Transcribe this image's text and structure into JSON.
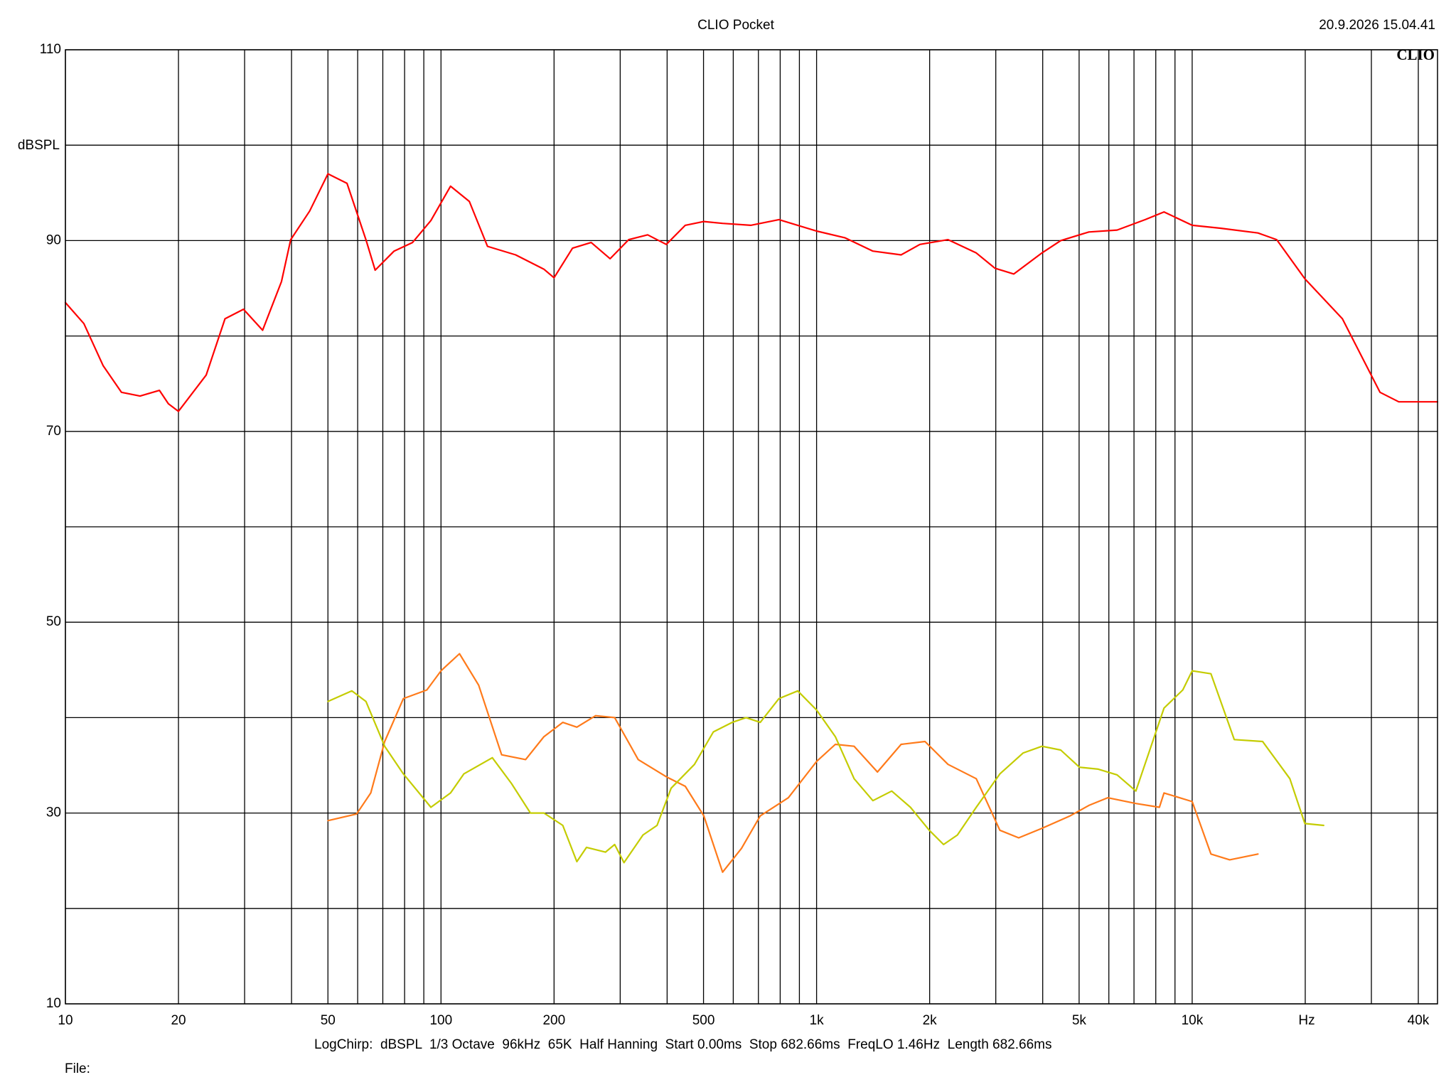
{
  "chart_data": {
    "type": "line",
    "title": "CLIO Pocket",
    "timestamp": "20.9.2026 15.04.41",
    "logo": "CLIO",
    "y_label": "dBSPL",
    "x_label": "Hz",
    "settings": "LogChirp:  dBSPL  1/3 Octave  96kHz  65K  Half Hanning  Start 0.00ms  Stop 682.66ms  FreqLO 1.46Hz  Length 682.66ms",
    "file_label": "File:",
    "xscale": "log",
    "grid": true,
    "xlim": [
      10,
      45000
    ],
    "ylim": [
      10,
      110
    ],
    "xticks": [
      10,
      20,
      50,
      100,
      200,
      500,
      {
        "value": 1000,
        "label": "1k"
      },
      {
        "value": 2000,
        "label": "2k"
      },
      {
        "value": 5000,
        "label": "5k"
      },
      {
        "value": 10000,
        "label": "10k"
      },
      {
        "value": 40000,
        "label": "40k"
      }
    ],
    "xgrid": [
      30,
      40,
      60,
      70,
      80,
      90,
      300,
      400,
      600,
      700,
      800,
      900,
      3000,
      4000,
      6000,
      7000,
      8000,
      9000,
      20000,
      30000
    ],
    "yticks": [
      10,
      30,
      50,
      70,
      90,
      110
    ],
    "ygrid": [
      20,
      40,
      60,
      80,
      100
    ],
    "series": [
      {
        "color": "#ff0000",
        "x": [
          10,
          11.2,
          12.6,
          14.1,
          15.8,
          17.8,
          18.8,
          20,
          23.7,
          26.6,
          29.8,
          33.5,
          37.6,
          39.8,
          44.7,
          50,
          56.2,
          63.1,
          66.8,
          75,
          84,
          94,
          106,
          119,
          133,
          158,
          188,
          200,
          224,
          251,
          282,
          316,
          355,
          398,
          447,
          501,
          562,
          668,
          794,
          1000,
          1189,
          1412,
          1679,
          1884,
          2239,
          2661,
          2985,
          3350,
          3981,
          4467,
          5309,
          6310,
          7499,
          8414,
          10000,
          11885,
          14962,
          16788,
          19953,
          25119,
          31623,
          35481,
          45000
        ],
        "values": [
          83.5,
          81.3,
          76.9,
          74.1,
          73.7,
          74.3,
          72.9,
          72.1,
          75.9,
          81.8,
          82.8,
          80.6,
          85.7,
          90.1,
          93.1,
          97.0,
          96.0,
          90.1,
          86.9,
          88.9,
          89.8,
          92.1,
          95.7,
          94.1,
          89.4,
          88.5,
          87.0,
          86.1,
          89.2,
          89.8,
          88.1,
          90.1,
          90.6,
          89.6,
          91.6,
          92.0,
          91.8,
          91.6,
          92.2,
          91.0,
          90.3,
          88.9,
          88.5,
          89.6,
          90.1,
          88.7,
          87.1,
          86.5,
          88.7,
          90.0,
          90.9,
          91.1,
          92.2,
          93.0,
          91.6,
          91.3,
          90.8,
          90.1,
          86.0,
          81.8,
          74.1,
          73.1,
          73.1
        ]
      },
      {
        "color": "#ff7a1a",
        "x": [
          50,
          59.6,
          65,
          70.8,
          79.4,
          91.7,
          100,
          112,
          126,
          145,
          168,
          188,
          211,
          230,
          258,
          290,
          335,
          398,
          447,
          501,
          562,
          631,
          708,
          841,
          1000,
          1122,
          1259,
          1452,
          1679,
          1944,
          2239,
          2661,
          3076,
          3452,
          3981,
          4732,
          5309,
          5957,
          7080,
          8180,
          8414,
          10000,
          11220,
          12589,
          14962
        ],
        "values": [
          29.2,
          29.9,
          32.1,
          37.5,
          42.0,
          42.9,
          44.9,
          46.7,
          43.4,
          36.1,
          35.6,
          38.0,
          39.5,
          39.0,
          40.2,
          40.0,
          35.6,
          33.8,
          32.8,
          29.7,
          23.8,
          26.3,
          29.7,
          31.6,
          35.4,
          37.2,
          37.0,
          34.3,
          37.2,
          37.5,
          35.1,
          33.6,
          28.2,
          27.4,
          28.4,
          29.7,
          30.8,
          31.6,
          31.0,
          30.6,
          32.1,
          31.2,
          25.7,
          25.1,
          25.7
        ]
      },
      {
        "color": "#c4cc00",
        "x": [
          50,
          57.9,
          63.1,
          70.8,
          79.4,
          94,
          106,
          115,
          137,
          154,
          173,
          188,
          211,
          230,
          244,
          274,
          290,
          307,
          345,
          376,
          410,
          473,
          531,
          596,
          649,
          708,
          794,
          891,
          1000,
          1122,
          1259,
          1412,
          1585,
          1778,
          1995,
          2178,
          2371,
          2661,
          3076,
          3548,
          3981,
          4467,
          5012,
          5623,
          6310,
          7080,
          8414,
          9441,
          10000,
          11220,
          12942,
          15402,
          18197,
          19953,
          22387
        ],
        "values": [
          41.7,
          42.8,
          41.7,
          37.0,
          34.1,
          30.6,
          32.1,
          34.1,
          35.8,
          33.1,
          30.0,
          30.0,
          28.7,
          24.9,
          26.4,
          25.9,
          26.7,
          24.8,
          27.7,
          28.7,
          32.6,
          35.1,
          38.5,
          39.5,
          40.0,
          39.5,
          42.0,
          42.8,
          40.8,
          38.0,
          33.6,
          31.3,
          32.3,
          30.6,
          28.2,
          26.7,
          27.7,
          30.6,
          34.1,
          36.3,
          37.0,
          36.6,
          34.8,
          34.6,
          34.0,
          32.3,
          41.0,
          42.9,
          44.9,
          44.6,
          37.7,
          37.5,
          33.6,
          28.9,
          28.7
        ]
      }
    ]
  }
}
